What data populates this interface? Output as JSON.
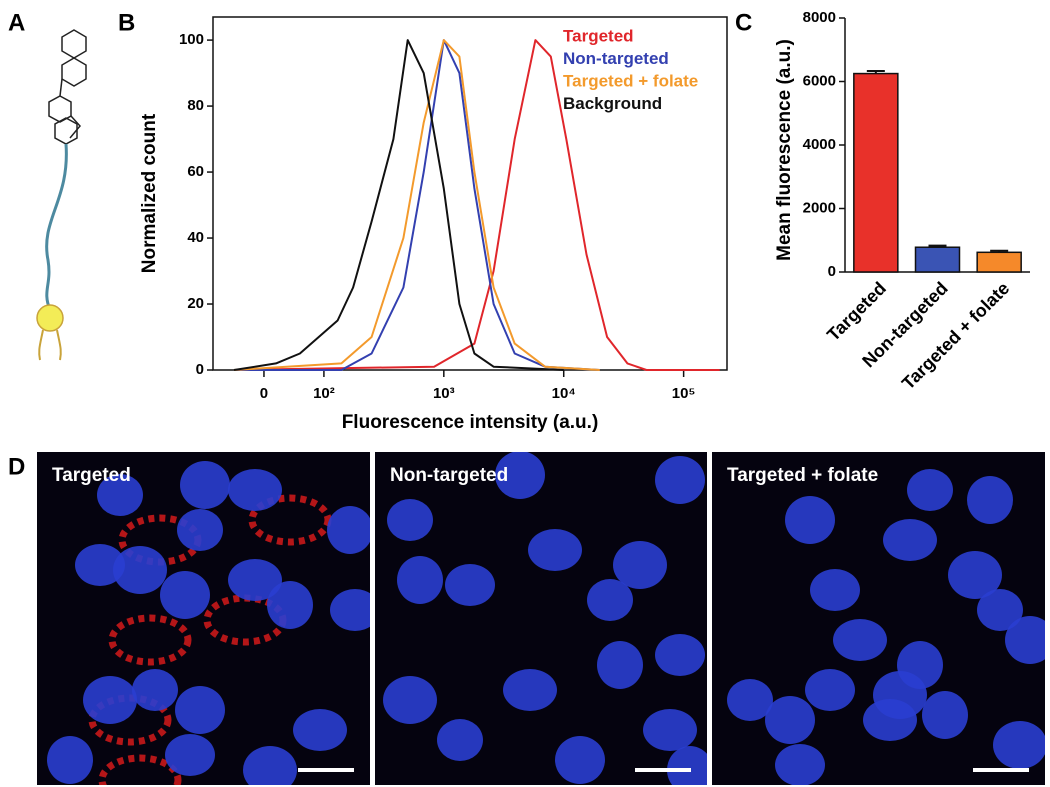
{
  "panel_labels": [
    "A",
    "B",
    "C",
    "D"
  ],
  "chart_data": [
    {
      "type": "line",
      "xscale": "symlog",
      "linthresh": 100,
      "linscale": 0.5,
      "x_label": "Fluorescence intensity (a.u.)",
      "y_label": "Normalized count",
      "xlim": [
        -85,
        230000
      ],
      "ylim": [
        0,
        107
      ],
      "xticks": [
        0,
        {
          "value": 100,
          "label": "10²"
        },
        {
          "value": 1000,
          "label": "10³"
        },
        {
          "value": 10000,
          "label": "10⁴"
        },
        {
          "value": 100000,
          "label": "10⁵"
        }
      ],
      "yticks": [
        0,
        20,
        40,
        60,
        80,
        100
      ],
      "series": [
        {
          "name": "Targeted",
          "color": "#e0262b",
          "x": [
            -50,
            830,
            1800,
            2600,
            3900,
            5800,
            7800,
            10500,
            15500,
            23000,
            34000,
            49000,
            200000
          ],
          "values": [
            0,
            1,
            8,
            30,
            70,
            100,
            95,
            70,
            35,
            10,
            2,
            0,
            0
          ]
        },
        {
          "name": "Non-targeted",
          "color": "#3340b0",
          "x": [
            -50,
            140,
            250,
            460,
            680,
            1000,
            1350,
            1800,
            2600,
            3900,
            7000,
            20000
          ],
          "values": [
            0,
            0,
            5,
            25,
            60,
            100,
            90,
            55,
            20,
            5,
            1,
            0
          ]
        },
        {
          "name": "Targeted + folate",
          "color": "#f39a2c",
          "x": [
            -50,
            140,
            250,
            460,
            680,
            1000,
            1350,
            1800,
            2600,
            3900,
            7000,
            20000
          ],
          "values": [
            0,
            2,
            10,
            40,
            75,
            100,
            95,
            60,
            25,
            8,
            1,
            0
          ]
        },
        {
          "name": "Background",
          "color": "#111111",
          "x": [
            -50,
            20,
            60,
            130,
            175,
            250,
            380,
            500,
            680,
            1000,
            1350,
            1800,
            2600,
            10000
          ],
          "values": [
            0,
            2,
            5,
            15,
            25,
            45,
            70,
            100,
            90,
            55,
            20,
            5,
            1,
            0
          ]
        }
      ]
    },
    {
      "type": "bar",
      "y_label": "Mean fluorescence (a.u.)",
      "categories": [
        "Targeted",
        "Non-targeted",
        "Targeted + folate"
      ],
      "values": [
        6250,
        780,
        620
      ],
      "errors": [
        80,
        50,
        50
      ],
      "colors": [
        "#e8312a",
        "#3a54b4",
        "#f5892a"
      ],
      "ylim": [
        0,
        8000
      ],
      "yticks": [
        0,
        2000,
        4000,
        6000,
        8000
      ]
    }
  ],
  "micrographs": [
    "Targeted",
    "Non-targeted",
    "Targeted + folate"
  ]
}
